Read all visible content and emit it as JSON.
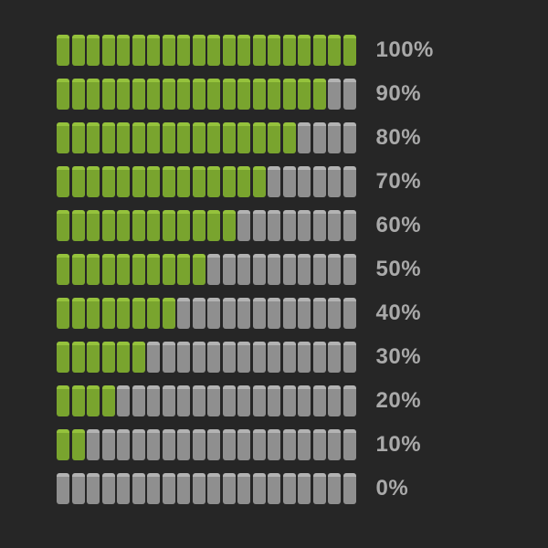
{
  "type": "segmented-progress-bars",
  "background_color": "#262626",
  "segments_per_bar": 20,
  "segment": {
    "width": 14,
    "height": 34,
    "gap": 2.5,
    "border_radius": 3,
    "filled_top_color": "#95c23c",
    "filled_body_color": "#79a42e",
    "empty_top_color": "#b3b3b3",
    "empty_body_color": "#8f8f8f",
    "highlight_stop_pct": 12
  },
  "label_style": {
    "color": "#a9a9a9",
    "font_size": 24,
    "font_weight": 700
  },
  "bars": [
    {
      "percent": 100,
      "filled": 20,
      "label": "100%"
    },
    {
      "percent": 90,
      "filled": 18,
      "label": "90%"
    },
    {
      "percent": 80,
      "filled": 16,
      "label": "80%"
    },
    {
      "percent": 70,
      "filled": 14,
      "label": "70%"
    },
    {
      "percent": 60,
      "filled": 12,
      "label": "60%"
    },
    {
      "percent": 50,
      "filled": 10,
      "label": "50%"
    },
    {
      "percent": 40,
      "filled": 8,
      "label": "40%"
    },
    {
      "percent": 30,
      "filled": 6,
      "label": "30%"
    },
    {
      "percent": 20,
      "filled": 4,
      "label": "20%"
    },
    {
      "percent": 10,
      "filled": 2,
      "label": "10%"
    },
    {
      "percent": 0,
      "filled": 0,
      "label": "0%"
    }
  ]
}
